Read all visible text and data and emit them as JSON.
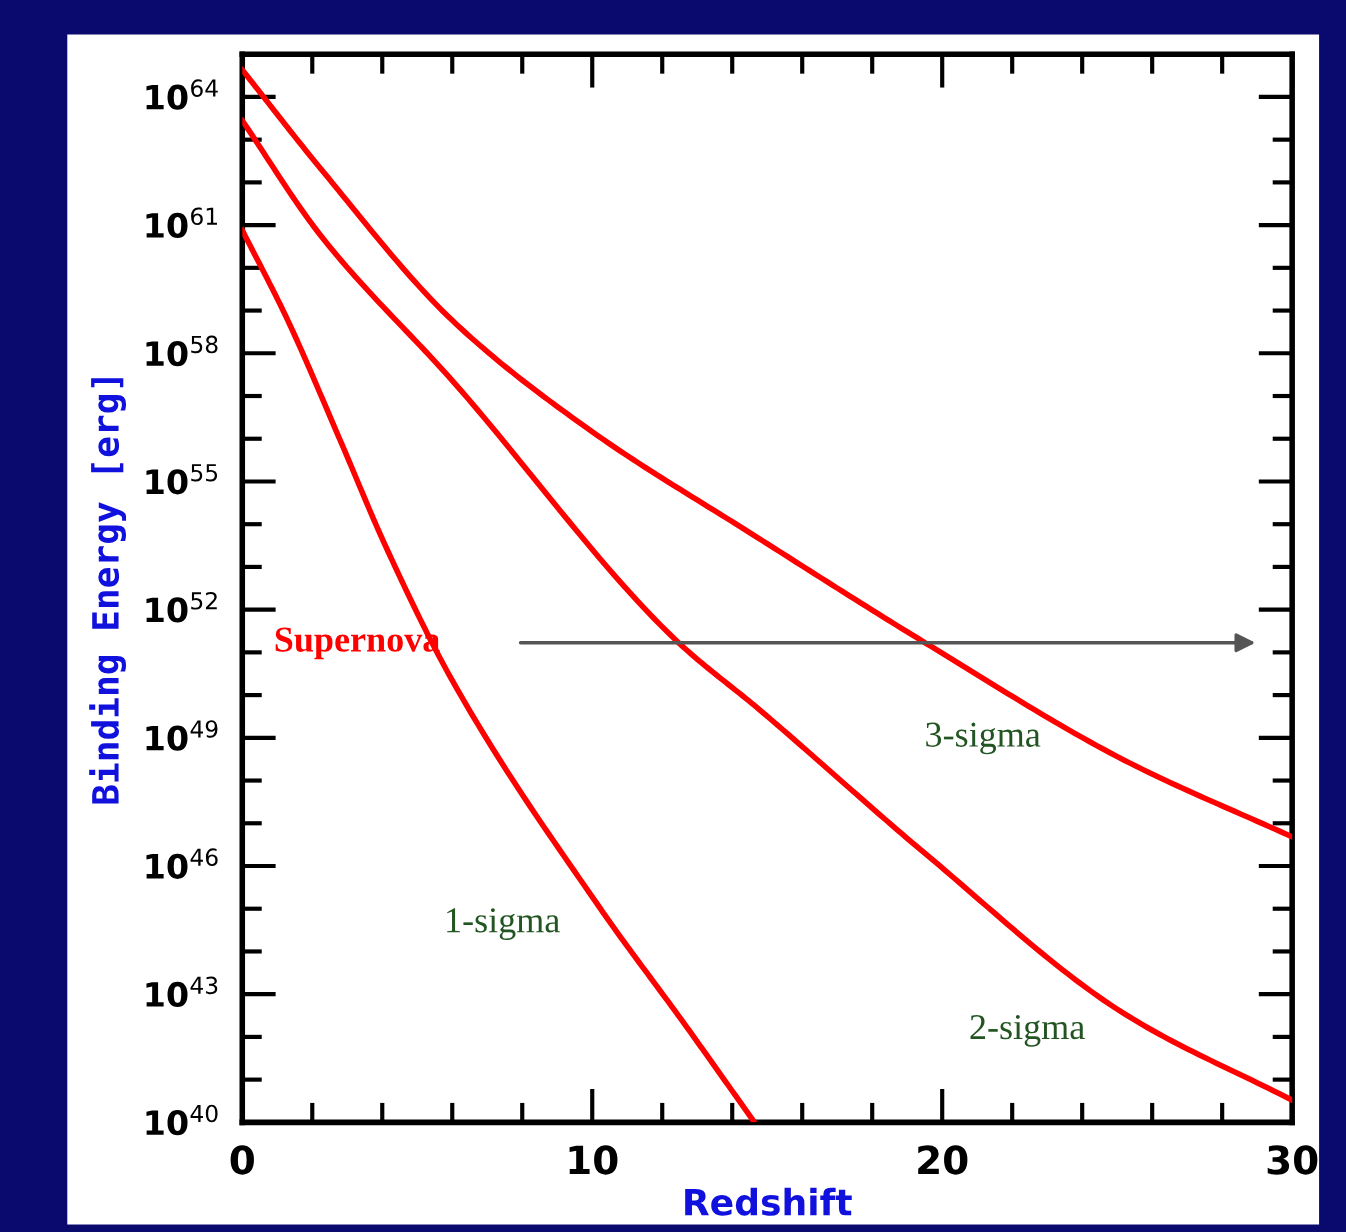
{
  "chart_data": {
    "type": "line",
    "xlabel": "Redshift",
    "ylabel": "Binding Energy [erg]",
    "log": "y",
    "xlim": [
      0,
      30
    ],
    "ylim": [
      1e+40,
      1e+65
    ],
    "xticks": [
      0,
      {
        "value": 2,
        "label": null
      },
      {
        "value": 4,
        "label": null
      },
      {
        "value": 6,
        "label": null
      },
      {
        "value": 8,
        "label": null
      },
      10,
      {
        "value": 12,
        "label": null
      },
      {
        "value": 14,
        "label": null
      },
      {
        "value": 16,
        "label": null
      },
      {
        "value": 18,
        "label": null
      },
      20,
      {
        "value": 22,
        "label": null
      },
      {
        "value": 24,
        "label": null
      },
      {
        "value": 26,
        "label": null
      },
      {
        "value": 28,
        "label": null
      },
      30
    ],
    "yticks": [
      {
        "value": 1e+40,
        "label": "10$^{40}$"
      },
      {
        "value": 1e+41,
        "label": null
      },
      {
        "value": 1e+42,
        "label": null
      },
      {
        "value": 1e+43,
        "label": "10$^{43}$"
      },
      {
        "value": 1e+44,
        "label": null
      },
      {
        "value": 1e+45,
        "label": null
      },
      {
        "value": 1e+46,
        "label": "10$^{46}$"
      },
      {
        "value": 1e+47,
        "label": null
      },
      {
        "value": 1e+48,
        "label": null
      },
      {
        "value": 1e+49,
        "label": "10$^{49}$"
      },
      {
        "value": 1e+50,
        "label": null
      },
      {
        "value": 1e+51,
        "label": null
      },
      {
        "value": 1e+52,
        "label": "10$^{52}$"
      },
      {
        "value": 1e+53,
        "label": null
      },
      {
        "value": 1e+54,
        "label": null
      },
      {
        "value": 1e+55,
        "label": "10$^{55}$"
      },
      {
        "value": 1e+56,
        "label": null
      },
      {
        "value": 1e+57,
        "label": null
      },
      {
        "value": 1e+58,
        "label": "10$^{58}$"
      },
      {
        "value": 1e+59,
        "label": null
      },
      {
        "value": 1e+60,
        "label": null
      },
      {
        "value": 1e+61,
        "label": "10$^{61}$"
      },
      {
        "value": 1e+62,
        "label": null
      },
      {
        "value": 1e+63,
        "label": null
      },
      {
        "value": 1e+64,
        "label": "10$^{64}$"
      }
    ],
    "grid": false,
    "legend": false,
    "marker": "none",
    "line_style": "solid",
    "series": [
      {
        "name": "1-sigma",
        "color": "#ff0000",
        "x": [
          0,
          1.3,
          2.8,
          4.1,
          6.0,
          10.2,
          12.7,
          14.6
        ],
        "values": [
          7.6e+60,
          5.9e+58,
          9.1e+55,
          3e+53,
          2.2e+50,
          1.1e+45,
          1.7e+42,
          1.1e+40
        ]
      },
      {
        "name": "2-sigma",
        "color": "#ff0000",
        "x": [
          0,
          2.2,
          6.0,
          12.4,
          14.8,
          19.5,
          25.2,
          30
        ],
        "values": [
          2.8e+63,
          6.3e+60,
          2.3e+57,
          1.9e+51,
          4.4e+49,
          2e+46,
          3.5e+42,
          3.3e+40
        ]
      },
      {
        "name": "3-sigma",
        "color": "#ff0000",
        "x": [
          0,
          2.2,
          6.0,
          9.8,
          14.7,
          19.5,
          25.2,
          30
        ],
        "values": [
          4.3e+64,
          2.3e+62,
          5.9e+58,
          1.9e+56,
          5e+53,
          1.7e+51,
          3e+48,
          4.8e+46
        ]
      }
    ],
    "annotations": [
      "Supernova"
    ]
  }
}
